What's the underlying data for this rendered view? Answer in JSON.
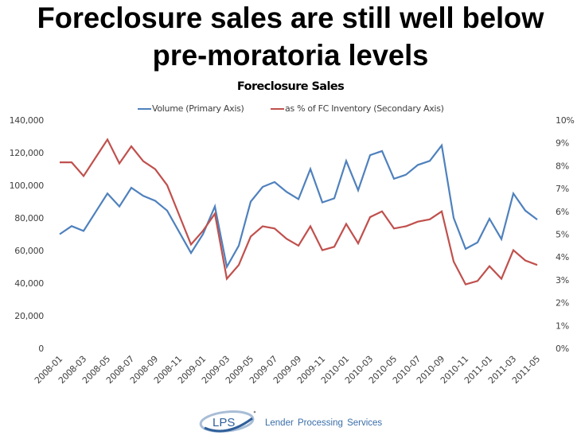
{
  "slide": {
    "headline_line1": "Foreclosure sales are still well below",
    "headline_line2": "pre-moratoria levels"
  },
  "footer": {
    "logo_text": "LPS",
    "company_name": "Lender Processing Services"
  },
  "chart_data": {
    "type": "line",
    "title": "Foreclosure Sales",
    "legend_position": "top",
    "grid": false,
    "x": [
      "2008-01",
      "2008-02",
      "2008-03",
      "2008-04",
      "2008-05",
      "2008-06",
      "2008-07",
      "2008-08",
      "2008-09",
      "2008-10",
      "2008-11",
      "2008-12",
      "2009-01",
      "2009-02",
      "2009-03",
      "2009-04",
      "2009-05",
      "2009-06",
      "2009-07",
      "2009-08",
      "2009-09",
      "2009-10",
      "2009-11",
      "2009-12",
      "2010-01",
      "2010-02",
      "2010-03",
      "2010-04",
      "2010-05",
      "2010-06",
      "2010-07",
      "2010-08",
      "2010-09",
      "2010-10",
      "2010-11",
      "2010-12",
      "2011-01",
      "2011-02",
      "2011-03",
      "2011-04",
      "2011-05"
    ],
    "x_tick_labels": [
      "2008-01",
      "2008-03",
      "2008-05",
      "2008-07",
      "2008-09",
      "2008-11",
      "2009-01",
      "2009-03",
      "2009-05",
      "2009-07",
      "2009-09",
      "2009-11",
      "2010-01",
      "2010-03",
      "2010-05",
      "2010-07",
      "2010-09",
      "2010-11",
      "2011-01",
      "2011-03",
      "2011-05"
    ],
    "primary_axis": {
      "ylim": [
        0,
        140000
      ],
      "tick_labels": [
        "0",
        "20,000",
        "40,000",
        "60,000",
        "80,000",
        "100,000",
        "120,000",
        "140,000"
      ],
      "ticks": [
        0,
        20000,
        40000,
        60000,
        80000,
        100000,
        120000,
        140000
      ]
    },
    "secondary_axis": {
      "ylim": [
        0,
        10
      ],
      "tick_labels": [
        "0%",
        "1%",
        "2%",
        "3%",
        "4%",
        "5%",
        "6%",
        "7%",
        "8%",
        "9%",
        "10%"
      ],
      "ticks": [
        0,
        1,
        2,
        3,
        4,
        5,
        6,
        7,
        8,
        9,
        10
      ]
    },
    "series": [
      {
        "name": "Volume (Primary Axis)",
        "axis": "primary",
        "color": "#4f81bd",
        "values": [
          70000,
          75000,
          72000,
          83500,
          95000,
          87000,
          98500,
          93500,
          90500,
          84500,
          71500,
          58500,
          70000,
          87000,
          50000,
          63000,
          90000,
          99000,
          102000,
          96000,
          91500,
          110000,
          89500,
          92000,
          115000,
          97000,
          118500,
          121000,
          104000,
          106500,
          112500,
          115000,
          124500,
          80000,
          61000,
          65000,
          79500,
          67000,
          95000,
          84500,
          79000
        ]
      },
      {
        "name": "as % of FC Inventory (Secondary Axis)",
        "axis": "secondary",
        "color": "#c0504d",
        "values": [
          8.15,
          8.15,
          7.55,
          8.35,
          9.15,
          8.1,
          8.85,
          8.2,
          7.85,
          7.15,
          5.85,
          4.55,
          5.15,
          5.9,
          3.05,
          3.65,
          4.9,
          5.35,
          5.25,
          4.8,
          4.5,
          5.35,
          4.3,
          4.45,
          5.45,
          4.6,
          5.75,
          6.0,
          5.25,
          5.35,
          5.55,
          5.65,
          6.0,
          3.8,
          2.8,
          2.95,
          3.6,
          3.05,
          4.3,
          3.85,
          3.65
        ]
      }
    ]
  }
}
